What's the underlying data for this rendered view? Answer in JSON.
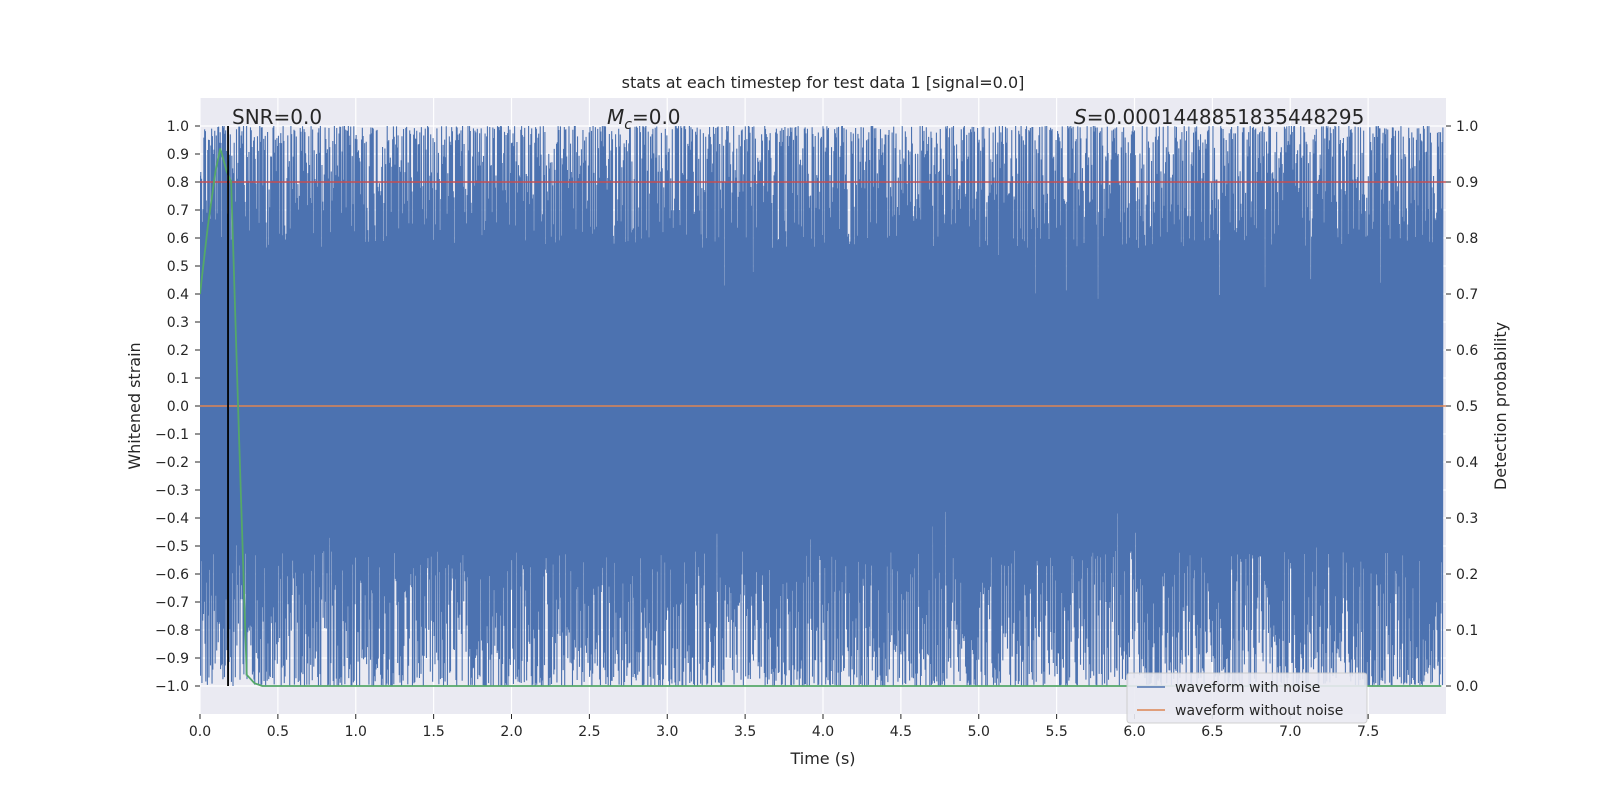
{
  "chart_data": {
    "type": "line",
    "title": "stats at each timestep for test data 1 [signal=0.0]",
    "xlabel": "Time (s)",
    "ylabel_left": "Whitened strain",
    "ylabel_right": "Detection probability",
    "xlim": [
      0.0,
      8.0
    ],
    "ylim_left": [
      -1.1,
      1.1
    ],
    "ylim_right": [
      -0.05,
      1.05
    ],
    "x_ticks": [
      0.0,
      0.5,
      1.0,
      1.5,
      2.0,
      2.5,
      3.0,
      3.5,
      4.0,
      4.5,
      5.0,
      5.5,
      6.0,
      6.5,
      7.0,
      7.5
    ],
    "x_tick_labels": [
      "0.0",
      "0.5",
      "1.0",
      "1.5",
      "2.0",
      "2.5",
      "3.0",
      "3.5",
      "4.0",
      "4.5",
      "5.0",
      "5.5",
      "6.0",
      "6.5",
      "7.0",
      "7.5"
    ],
    "y_left_ticks": [
      1.0,
      0.9,
      0.8,
      0.7,
      0.6,
      0.5,
      0.4,
      0.3,
      0.2,
      0.1,
      0.0,
      -0.1,
      -0.2,
      -0.3,
      -0.4,
      -0.5,
      -0.6,
      -0.7,
      -0.8,
      -0.9,
      -1.0
    ],
    "y_left_tick_labels": [
      "1.0",
      "0.9",
      "0.8",
      "0.7",
      "0.6",
      "0.5",
      "0.4",
      "0.3",
      "0.2",
      "0.1",
      "0.0",
      "−0.1",
      "−0.2",
      "−0.3",
      "−0.4",
      "−0.5",
      "−0.6",
      "−0.7",
      "−0.8",
      "−0.9",
      "−1.0"
    ],
    "y_right_ticks": [
      1.0,
      0.9,
      0.8,
      0.7,
      0.6,
      0.5,
      0.4,
      0.3,
      0.2,
      0.1,
      0.0
    ],
    "y_right_tick_labels": [
      "1.0",
      "0.9",
      "0.8",
      "0.7",
      "0.6",
      "0.5",
      "0.4",
      "0.3",
      "0.2",
      "0.1",
      "0.0"
    ],
    "grid": true,
    "legend_position": "lower-right",
    "series": [
      {
        "name": "waveform with noise",
        "color": "#4c72b0",
        "axis": "left",
        "description": "dense noise oscillating between about -1.0 and 1.0 over 0-8 s",
        "range": [
          -1.0,
          1.0
        ]
      },
      {
        "name": "waveform without noise",
        "color": "#dd8452",
        "axis": "left",
        "x": [
          0.0,
          8.0
        ],
        "y": [
          0.0,
          0.0
        ]
      },
      {
        "axis": "right",
        "color": "#55a868",
        "x": [
          0.0,
          0.05,
          0.1,
          0.13,
          0.17,
          0.2,
          0.25,
          0.3,
          0.35,
          0.4,
          1.0,
          2.0,
          3.0,
          4.0,
          5.0,
          6.0,
          7.0,
          7.97
        ],
        "y": [
          0.7,
          0.82,
          0.92,
          0.96,
          0.92,
          0.9,
          0.45,
          0.02,
          0.005,
          0.0,
          0.0,
          0.0,
          0.0,
          0.0,
          0.0,
          0.0,
          0.0,
          0.0
        ]
      },
      {
        "axis": "right",
        "color": "#c44e52",
        "x": [
          0.0,
          8.0
        ],
        "y": [
          0.9,
          0.9
        ]
      }
    ],
    "vertical_line": {
      "x": 0.18,
      "color": "#000000"
    },
    "annotations": {
      "snr": "SNR=0.0",
      "mc_symbol": "M",
      "mc_subscript": "c",
      "mc_value": "=0.0",
      "s_symbol": "S",
      "s_value": "=0.00014488518354482​95"
    }
  }
}
